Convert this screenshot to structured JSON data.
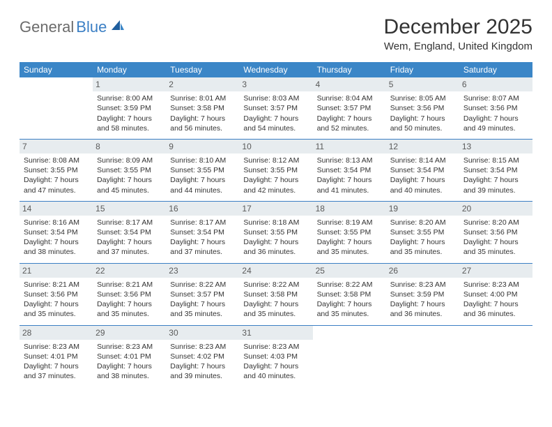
{
  "brand": {
    "part1": "General",
    "part2": "Blue"
  },
  "title": "December 2025",
  "location": "Wem, England, United Kingdom",
  "colors": {
    "header_bg": "#3b86c7",
    "header_text": "#ffffff",
    "daynum_bg": "#e7ecef",
    "row_border": "#3b7fc4",
    "logo_gray": "#6b6b6b",
    "logo_blue": "#3b7fc4"
  },
  "day_headers": [
    "Sunday",
    "Monday",
    "Tuesday",
    "Wednesday",
    "Thursday",
    "Friday",
    "Saturday"
  ],
  "weeks": [
    [
      null,
      {
        "n": "1",
        "sunrise": "8:00 AM",
        "sunset": "3:59 PM",
        "daylight": "7 hours and 58 minutes."
      },
      {
        "n": "2",
        "sunrise": "8:01 AM",
        "sunset": "3:58 PM",
        "daylight": "7 hours and 56 minutes."
      },
      {
        "n": "3",
        "sunrise": "8:03 AM",
        "sunset": "3:57 PM",
        "daylight": "7 hours and 54 minutes."
      },
      {
        "n": "4",
        "sunrise": "8:04 AM",
        "sunset": "3:57 PM",
        "daylight": "7 hours and 52 minutes."
      },
      {
        "n": "5",
        "sunrise": "8:05 AM",
        "sunset": "3:56 PM",
        "daylight": "7 hours and 50 minutes."
      },
      {
        "n": "6",
        "sunrise": "8:07 AM",
        "sunset": "3:56 PM",
        "daylight": "7 hours and 49 minutes."
      }
    ],
    [
      {
        "n": "7",
        "sunrise": "8:08 AM",
        "sunset": "3:55 PM",
        "daylight": "7 hours and 47 minutes."
      },
      {
        "n": "8",
        "sunrise": "8:09 AM",
        "sunset": "3:55 PM",
        "daylight": "7 hours and 45 minutes."
      },
      {
        "n": "9",
        "sunrise": "8:10 AM",
        "sunset": "3:55 PM",
        "daylight": "7 hours and 44 minutes."
      },
      {
        "n": "10",
        "sunrise": "8:12 AM",
        "sunset": "3:55 PM",
        "daylight": "7 hours and 42 minutes."
      },
      {
        "n": "11",
        "sunrise": "8:13 AM",
        "sunset": "3:54 PM",
        "daylight": "7 hours and 41 minutes."
      },
      {
        "n": "12",
        "sunrise": "8:14 AM",
        "sunset": "3:54 PM",
        "daylight": "7 hours and 40 minutes."
      },
      {
        "n": "13",
        "sunrise": "8:15 AM",
        "sunset": "3:54 PM",
        "daylight": "7 hours and 39 minutes."
      }
    ],
    [
      {
        "n": "14",
        "sunrise": "8:16 AM",
        "sunset": "3:54 PM",
        "daylight": "7 hours and 38 minutes."
      },
      {
        "n": "15",
        "sunrise": "8:17 AM",
        "sunset": "3:54 PM",
        "daylight": "7 hours and 37 minutes."
      },
      {
        "n": "16",
        "sunrise": "8:17 AM",
        "sunset": "3:54 PM",
        "daylight": "7 hours and 37 minutes."
      },
      {
        "n": "17",
        "sunrise": "8:18 AM",
        "sunset": "3:55 PM",
        "daylight": "7 hours and 36 minutes."
      },
      {
        "n": "18",
        "sunrise": "8:19 AM",
        "sunset": "3:55 PM",
        "daylight": "7 hours and 35 minutes."
      },
      {
        "n": "19",
        "sunrise": "8:20 AM",
        "sunset": "3:55 PM",
        "daylight": "7 hours and 35 minutes."
      },
      {
        "n": "20",
        "sunrise": "8:20 AM",
        "sunset": "3:56 PM",
        "daylight": "7 hours and 35 minutes."
      }
    ],
    [
      {
        "n": "21",
        "sunrise": "8:21 AM",
        "sunset": "3:56 PM",
        "daylight": "7 hours and 35 minutes."
      },
      {
        "n": "22",
        "sunrise": "8:21 AM",
        "sunset": "3:56 PM",
        "daylight": "7 hours and 35 minutes."
      },
      {
        "n": "23",
        "sunrise": "8:22 AM",
        "sunset": "3:57 PM",
        "daylight": "7 hours and 35 minutes."
      },
      {
        "n": "24",
        "sunrise": "8:22 AM",
        "sunset": "3:58 PM",
        "daylight": "7 hours and 35 minutes."
      },
      {
        "n": "25",
        "sunrise": "8:22 AM",
        "sunset": "3:58 PM",
        "daylight": "7 hours and 35 minutes."
      },
      {
        "n": "26",
        "sunrise": "8:23 AM",
        "sunset": "3:59 PM",
        "daylight": "7 hours and 36 minutes."
      },
      {
        "n": "27",
        "sunrise": "8:23 AM",
        "sunset": "4:00 PM",
        "daylight": "7 hours and 36 minutes."
      }
    ],
    [
      {
        "n": "28",
        "sunrise": "8:23 AM",
        "sunset": "4:01 PM",
        "daylight": "7 hours and 37 minutes."
      },
      {
        "n": "29",
        "sunrise": "8:23 AM",
        "sunset": "4:01 PM",
        "daylight": "7 hours and 38 minutes."
      },
      {
        "n": "30",
        "sunrise": "8:23 AM",
        "sunset": "4:02 PM",
        "daylight": "7 hours and 39 minutes."
      },
      {
        "n": "31",
        "sunrise": "8:23 AM",
        "sunset": "4:03 PM",
        "daylight": "7 hours and 40 minutes."
      },
      null,
      null,
      null
    ]
  ],
  "labels": {
    "sunrise": "Sunrise: ",
    "sunset": "Sunset: ",
    "daylight": "Daylight: "
  }
}
